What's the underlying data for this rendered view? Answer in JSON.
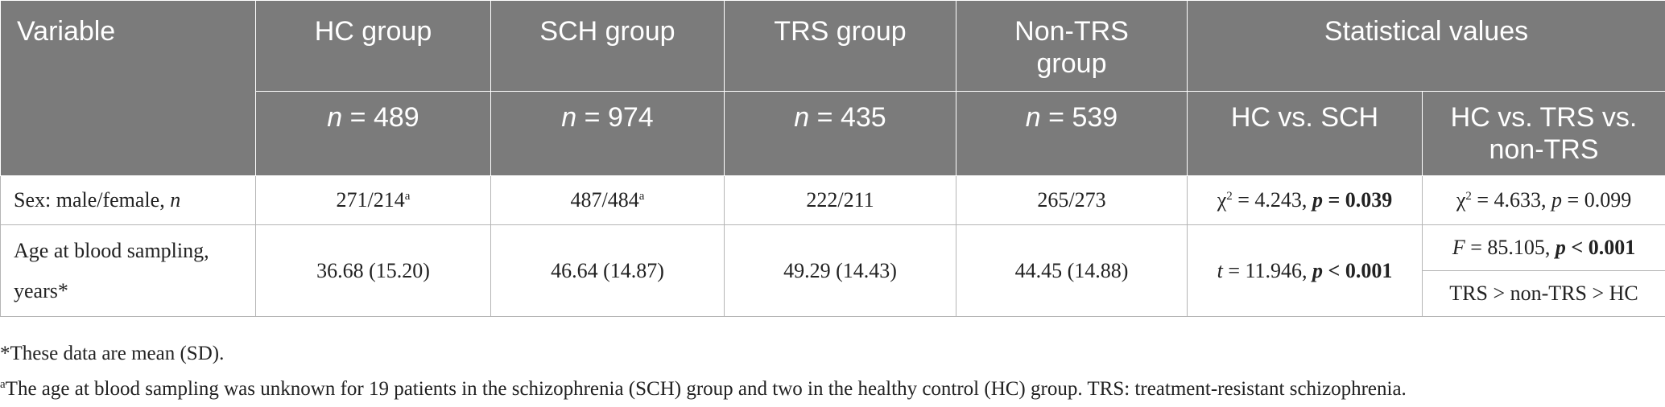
{
  "header": {
    "variable": "Variable",
    "hc": "HC group",
    "sch": "SCH group",
    "trs": "TRS group",
    "nontrs_line1": "Non-TRS",
    "nontrs_line2": "group",
    "stat": "Statistical values",
    "n_label": "n",
    "n_hc": " = 489",
    "n_sch": " = 974",
    "n_trs": " = 435",
    "n_nontrs": " = 539",
    "hc_vs_sch": "HC vs. SCH",
    "hc_vs_trs_line1": "HC vs. TRS vs.",
    "hc_vs_trs_line2": "non-TRS"
  },
  "rows": {
    "sex": {
      "label_text": "Sex: male/female, ",
      "label_italic": "n",
      "hc": "271/214",
      "hc_sup": "a",
      "sch": "487/484",
      "sch_sup": "a",
      "trs": "222/211",
      "nontrs": "265/273",
      "hc_vs_sch_stat": "χ",
      "hc_vs_sch_sup": "2",
      "hc_vs_sch_val": " = 4.243, ",
      "hc_vs_sch_p": "p",
      "hc_vs_sch_pval": " = 0.039",
      "three_stat": "χ",
      "three_sup": "2",
      "three_val": " = 4.633, ",
      "three_p": "p",
      "three_pval": " = 0.099"
    },
    "age": {
      "label_line1": "Age at blood sampling,",
      "label_line2": "years*",
      "hc": "36.68 (15.20)",
      "sch": "46.64 (14.87)",
      "trs": "49.29 (14.43)",
      "nontrs": "44.45 (14.88)",
      "hc_vs_sch_stat": "t",
      "hc_vs_sch_val": " = 11.946, ",
      "hc_vs_sch_p": "p",
      "hc_vs_sch_pval": " < 0.001",
      "three_stat": "F",
      "three_val": " = 85.105, ",
      "three_p": "p",
      "three_pval": " < 0.001",
      "posthoc": "TRS > non-TRS > HC"
    }
  },
  "footnotes": {
    "star": "*These data are mean (SD).",
    "a_mark": "a",
    "a_text": "The age at blood sampling was unknown for 19 patients in the schizophrenia (SCH) group and two in the healthy control (HC) group. TRS: treatment-resistant schizophrenia."
  }
}
